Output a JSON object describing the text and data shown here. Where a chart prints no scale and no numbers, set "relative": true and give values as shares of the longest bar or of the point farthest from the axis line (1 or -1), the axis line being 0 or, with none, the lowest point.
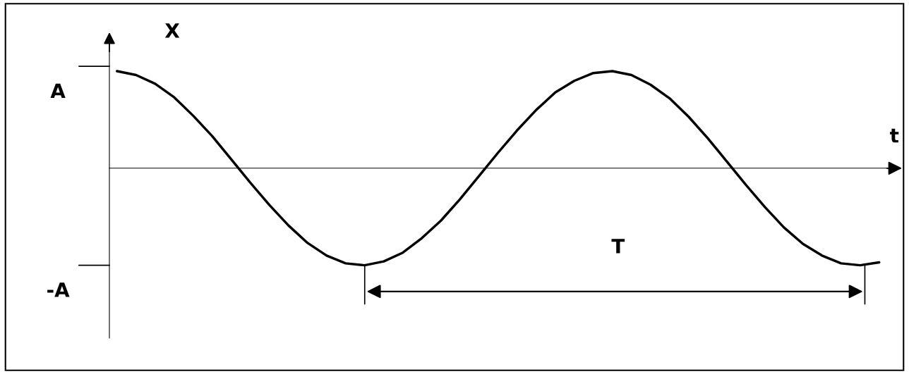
{
  "chart_data": {
    "type": "line",
    "relative": true,
    "xlabel": "t",
    "ylabel": "X",
    "marker": "none",
    "line_style": "solid",
    "categories": [
      null,
      null,
      null,
      null,
      null,
      null,
      null,
      null,
      null,
      null,
      null,
      null,
      null,
      null,
      null,
      null,
      null,
      null,
      null,
      null,
      null,
      null,
      null,
      null,
      null,
      null,
      null,
      null,
      null,
      null,
      null,
      null,
      null,
      null,
      null,
      null,
      null,
      null,
      null,
      null,
      null
    ],
    "series": [
      {
        "color": "#000000",
        "values": [
          1.0,
          0.96,
          0.87,
          0.73,
          0.54,
          0.33,
          0.09,
          -0.15,
          -0.38,
          -0.59,
          -0.77,
          -0.9,
          -0.98,
          -1.0,
          -0.96,
          -0.87,
          -0.72,
          -0.54,
          -0.32,
          -0.08,
          0.16,
          0.39,
          0.6,
          0.78,
          0.9,
          0.98,
          1.0,
          0.96,
          0.86,
          0.72,
          0.53,
          0.31,
          0.07,
          -0.17,
          -0.4,
          -0.61,
          -0.78,
          -0.9,
          -0.98,
          -1.0,
          -0.97
        ]
      }
    ],
    "annotations": [
      "A",
      "-A",
      "T"
    ]
  }
}
